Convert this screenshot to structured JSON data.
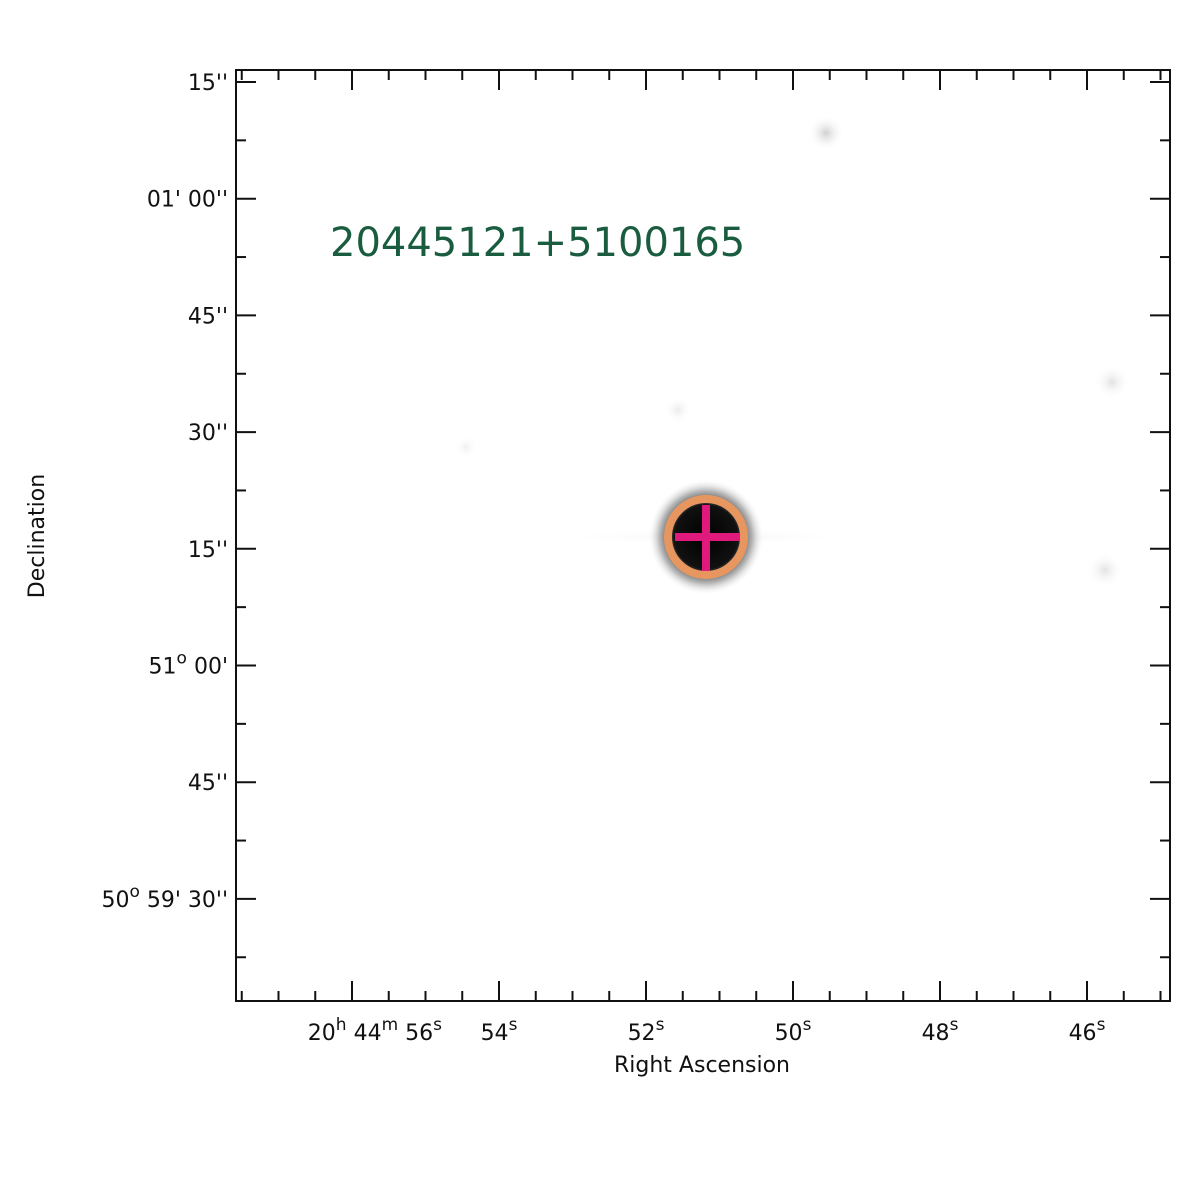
{
  "image": {
    "title": "20445121+5100165",
    "x_axis": {
      "label": "Right Ascension",
      "ticks": [
        [
          "20",
          "h",
          " 44",
          "m",
          " 56",
          "s"
        ],
        [
          "54",
          "s"
        ],
        [
          "52",
          "s"
        ],
        [
          "50",
          "s"
        ],
        [
          "48",
          "s"
        ],
        [
          "46",
          "s"
        ]
      ]
    },
    "y_axis": {
      "label": "Declination",
      "ticks": [
        [
          "15''"
        ],
        [
          "01' 00''"
        ],
        [
          "45''"
        ],
        [
          "30''"
        ],
        [
          "15''"
        ],
        [
          "51",
          "o",
          " 00'"
        ],
        [
          "45''"
        ],
        [
          "50",
          "o",
          " 59' 30''"
        ]
      ]
    }
  }
}
